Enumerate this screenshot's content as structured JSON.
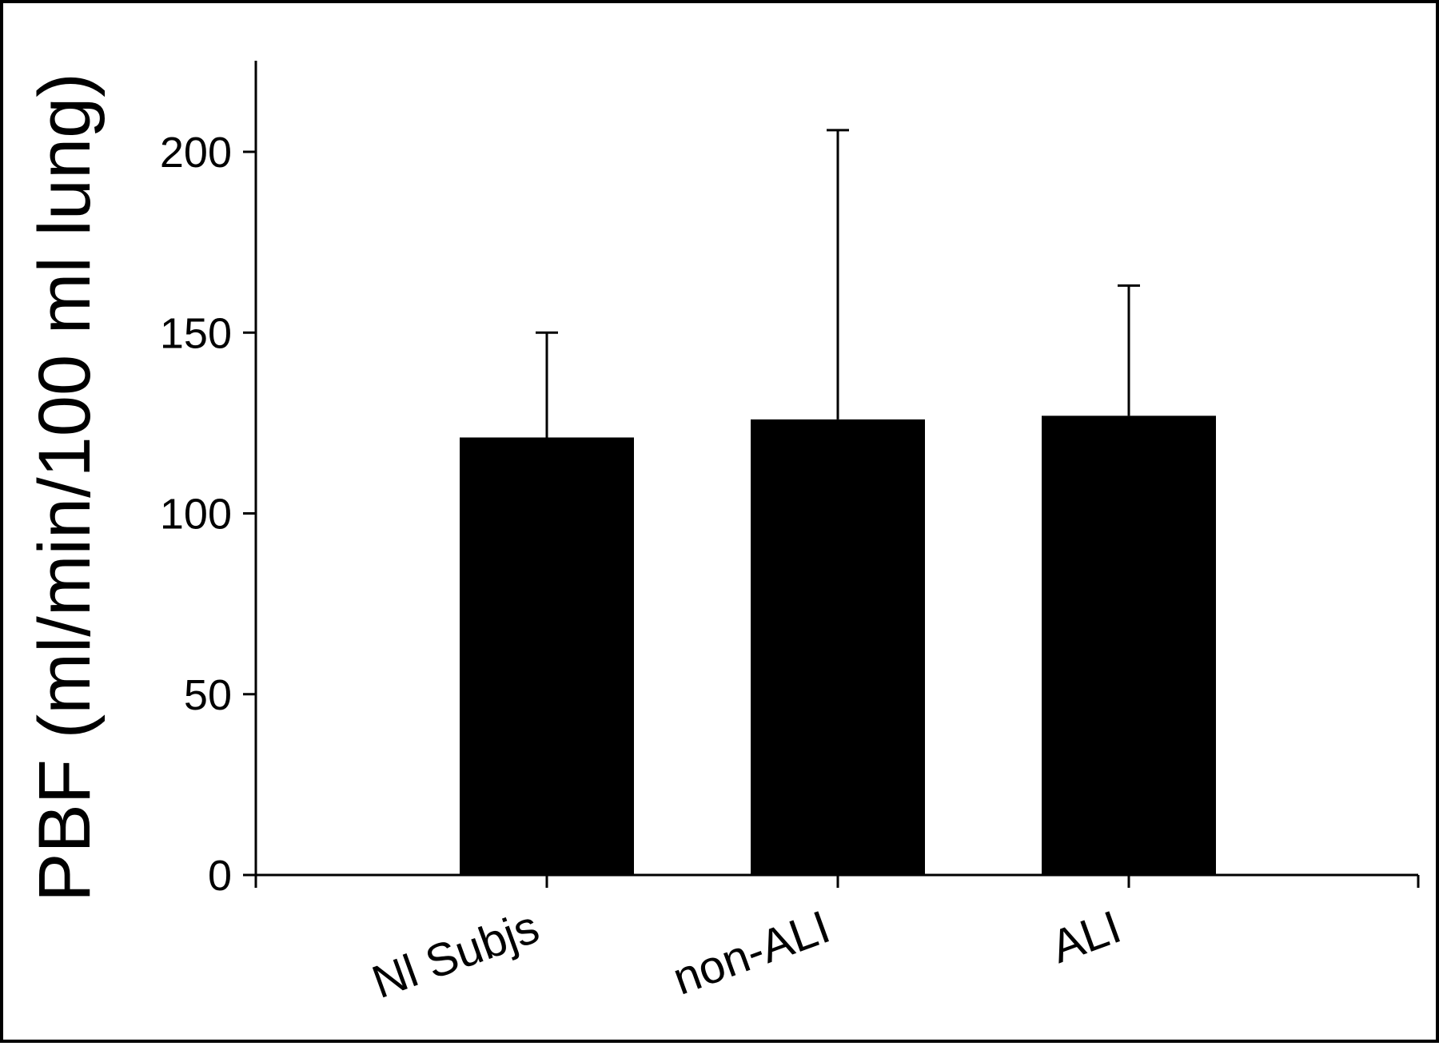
{
  "chart_data": {
    "type": "bar",
    "title": "",
    "xlabel": "",
    "ylabel": "PBF (ml/min/100 ml lung)",
    "categories": [
      "Nl Subjs",
      "non-ALI",
      "ALI"
    ],
    "values": [
      121,
      126,
      127
    ],
    "error_upper": [
      150,
      206,
      163
    ],
    "ylim": [
      0,
      225
    ],
    "yticks": [
      0,
      50,
      100,
      150,
      200
    ],
    "grid": false,
    "legend": "none",
    "bar_color": "#000000"
  }
}
